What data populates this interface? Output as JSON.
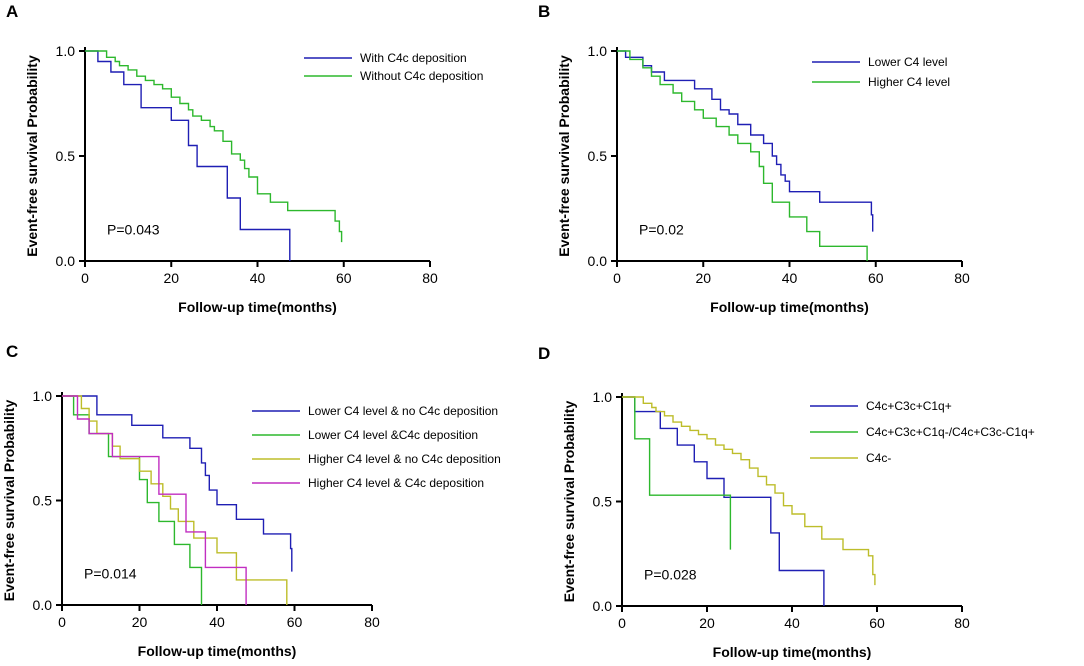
{
  "chart_data": [
    {
      "panel": "A",
      "type": "line",
      "subtype": "kaplan-meier",
      "xlabel": "Follow-up time(months)",
      "ylabel": "Event-free survival Probability",
      "xlim": [
        0,
        80
      ],
      "ylim": [
        0,
        1
      ],
      "xticks": [
        "0",
        "20",
        "40",
        "60",
        "80"
      ],
      "yticks": [
        "0.0",
        "0.5",
        "1.0"
      ],
      "pvalue": "P=0.043",
      "legend_position": "top-right",
      "series": [
        {
          "name": "With C4c deposition",
          "color": "#1f1fb4",
          "x": [
            0,
            3,
            6,
            9,
            13,
            20,
            24,
            26,
            33,
            36,
            47.5
          ],
          "y": [
            1.0,
            0.95,
            0.9,
            0.84,
            0.73,
            0.67,
            0.55,
            0.45,
            0.3,
            0.15,
            0.0
          ]
        },
        {
          "name": "Without C4c deposition",
          "color": "#2db82d",
          "x": [
            0,
            5,
            7,
            8,
            10,
            12,
            14,
            16,
            18,
            20,
            22,
            24,
            25,
            27,
            29,
            30,
            32,
            34,
            36,
            37,
            38,
            40,
            43,
            47,
            58,
            59,
            59.5
          ],
          "y": [
            1.0,
            0.97,
            0.95,
            0.93,
            0.91,
            0.88,
            0.86,
            0.84,
            0.82,
            0.78,
            0.75,
            0.72,
            0.69,
            0.67,
            0.64,
            0.62,
            0.57,
            0.51,
            0.48,
            0.44,
            0.4,
            0.32,
            0.28,
            0.24,
            0.19,
            0.14,
            0.09
          ]
        }
      ]
    },
    {
      "panel": "B",
      "type": "line",
      "subtype": "kaplan-meier",
      "xlabel": "Follow-up time(months)",
      "ylabel": "Event-free survival Probability",
      "xlim": [
        0,
        80
      ],
      "ylim": [
        0,
        1
      ],
      "xticks": [
        "0",
        "20",
        "40",
        "60",
        "80"
      ],
      "yticks": [
        "0.0",
        "0.5",
        "1.0"
      ],
      "pvalue": "P=0.02",
      "legend_position": "top-right",
      "series": [
        {
          "name": "Lower C4 level",
          "color": "#1f1fb4",
          "x": [
            0,
            2,
            6,
            8,
            11,
            18,
            22,
            24,
            26,
            28,
            31,
            34,
            36,
            37,
            38,
            39,
            40,
            47,
            59,
            59.3
          ],
          "y": [
            1.0,
            0.97,
            0.93,
            0.9,
            0.86,
            0.82,
            0.77,
            0.72,
            0.7,
            0.65,
            0.6,
            0.56,
            0.5,
            0.46,
            0.41,
            0.38,
            0.33,
            0.28,
            0.22,
            0.14
          ]
        },
        {
          "name": "Higher C4 level",
          "color": "#2db82d",
          "x": [
            0,
            3,
            6,
            8,
            10,
            13,
            15,
            18,
            20,
            23,
            26,
            28,
            31,
            33,
            34,
            36,
            40,
            44,
            47,
            58
          ],
          "y": [
            1.0,
            0.96,
            0.92,
            0.88,
            0.84,
            0.8,
            0.76,
            0.72,
            0.68,
            0.64,
            0.6,
            0.56,
            0.52,
            0.45,
            0.37,
            0.28,
            0.21,
            0.14,
            0.07,
            0.0
          ]
        }
      ]
    },
    {
      "panel": "C",
      "type": "line",
      "subtype": "kaplan-meier",
      "xlabel": "Follow-up time(months)",
      "ylabel": "Event-free survival Probability",
      "xlim": [
        0,
        80
      ],
      "ylim": [
        0,
        1
      ],
      "xticks": [
        "0",
        "20",
        "40",
        "60",
        "80"
      ],
      "yticks": [
        "0.0",
        "0.5",
        "1.0"
      ],
      "pvalue": "P=0.014",
      "legend_position": "top-right",
      "series": [
        {
          "name": "Lower C4 level & no C4c deposition",
          "color": "#1f1fb4",
          "x": [
            0,
            9,
            18,
            26,
            33,
            36,
            37,
            38,
            40,
            45,
            52,
            59,
            59.3
          ],
          "y": [
            1.0,
            0.91,
            0.86,
            0.8,
            0.75,
            0.68,
            0.62,
            0.55,
            0.48,
            0.41,
            0.34,
            0.27,
            0.16
          ]
        },
        {
          "name": "Lower C4 level &C4c deposition",
          "color": "#2db82d",
          "x": [
            0,
            3,
            7,
            12,
            20,
            22,
            25,
            29,
            33,
            36
          ],
          "y": [
            1.0,
            0.91,
            0.82,
            0.71,
            0.6,
            0.49,
            0.4,
            0.29,
            0.18,
            0.0
          ]
        },
        {
          "name": "Higher C4 level & no C4c deposition",
          "color": "#bdbd2a",
          "x": [
            0,
            5,
            7,
            9,
            13,
            15,
            20,
            23,
            26,
            28,
            30,
            34,
            40,
            45,
            58
          ],
          "y": [
            1.0,
            0.94,
            0.88,
            0.82,
            0.76,
            0.7,
            0.64,
            0.58,
            0.52,
            0.46,
            0.4,
            0.32,
            0.25,
            0.12,
            0.0
          ]
        },
        {
          "name": "Higher C4 level & C4c deposition",
          "color": "#c12ec1",
          "x": [
            0,
            4,
            7,
            13,
            20,
            25,
            32,
            37,
            47.5
          ],
          "y": [
            1.0,
            0.89,
            0.82,
            0.71,
            0.71,
            0.53,
            0.35,
            0.18,
            0.0
          ]
        }
      ]
    },
    {
      "panel": "D",
      "type": "line",
      "subtype": "kaplan-meier",
      "xlabel": "Follow-up time(months)",
      "ylabel": "Event-free survival Probability",
      "xlim": [
        0,
        80
      ],
      "ylim": [
        0,
        1
      ],
      "xticks": [
        "0",
        "20",
        "40",
        "60",
        "80"
      ],
      "yticks": [
        "0.0",
        "0.5",
        "1.0"
      ],
      "pvalue": "P=0.028",
      "legend_position": "top-right",
      "series": [
        {
          "name": "C4c+C3c+C1q+",
          "color": "#1f1fb4",
          "x": [
            0,
            3,
            9,
            13,
            17,
            20,
            24,
            33,
            35,
            37,
            47.5
          ],
          "y": [
            1.0,
            0.93,
            0.85,
            0.77,
            0.69,
            0.61,
            0.52,
            0.52,
            0.35,
            0.17,
            0.0
          ]
        },
        {
          "name": "C4c+C3c+C1q-/C4c+C3c-C1q+",
          "color": "#2db82d",
          "x": [
            0,
            3,
            6.5,
            25.5
          ],
          "y": [
            1.0,
            0.8,
            0.53,
            0.27
          ]
        },
        {
          "name": "C4c-",
          "color": "#bdbd2a",
          "x": [
            0,
            5,
            7,
            8,
            10,
            12,
            14,
            16,
            18,
            20,
            22,
            24,
            26,
            28,
            30,
            32,
            34,
            36,
            38,
            40,
            43,
            47,
            52,
            58,
            59,
            59.5
          ],
          "y": [
            1.0,
            0.97,
            0.95,
            0.93,
            0.91,
            0.88,
            0.86,
            0.84,
            0.82,
            0.8,
            0.77,
            0.75,
            0.73,
            0.7,
            0.66,
            0.62,
            0.58,
            0.54,
            0.48,
            0.44,
            0.38,
            0.32,
            0.27,
            0.24,
            0.15,
            0.1
          ]
        }
      ]
    }
  ]
}
